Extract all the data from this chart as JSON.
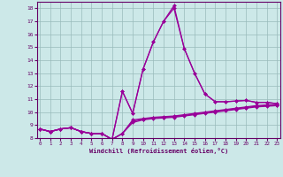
{
  "title": "",
  "xlabel": "Windchill (Refroidissement éolien,°C)",
  "bg_color": "#cce8e8",
  "line_color": "#990099",
  "grid_color": "#99bbbb",
  "x_values": [
    0,
    1,
    2,
    3,
    4,
    5,
    6,
    7,
    8,
    9,
    10,
    11,
    12,
    13,
    14,
    15,
    16,
    17,
    18,
    19,
    20,
    21,
    22,
    23
  ],
  "series_peak": [
    8.7,
    8.5,
    8.7,
    8.8,
    8.5,
    8.35,
    8.35,
    7.9,
    11.6,
    9.9,
    13.3,
    15.4,
    17.0,
    18.2,
    14.9,
    13.0,
    11.4,
    10.8,
    10.8,
    10.85,
    10.9,
    10.75,
    10.75,
    10.65
  ],
  "series_peak2": [
    8.7,
    8.5,
    8.7,
    8.8,
    8.5,
    8.35,
    8.35,
    7.9,
    11.6,
    9.9,
    13.3,
    15.4,
    17.0,
    18.0,
    14.9,
    13.0,
    11.4,
    10.8,
    10.8,
    10.85,
    10.9,
    10.75,
    10.75,
    10.65
  ],
  "series_flat1": [
    8.7,
    8.5,
    8.7,
    8.8,
    8.5,
    8.35,
    8.35,
    7.9,
    8.35,
    9.4,
    9.5,
    9.6,
    9.65,
    9.7,
    9.8,
    9.9,
    10.0,
    10.1,
    10.2,
    10.3,
    10.4,
    10.5,
    10.55,
    10.6
  ],
  "series_flat2": [
    8.7,
    8.5,
    8.7,
    8.8,
    8.5,
    8.35,
    8.35,
    7.9,
    8.35,
    9.3,
    9.45,
    9.55,
    9.6,
    9.65,
    9.75,
    9.85,
    9.95,
    10.05,
    10.15,
    10.25,
    10.35,
    10.45,
    10.5,
    10.55
  ],
  "series_flat3": [
    8.7,
    8.5,
    8.7,
    8.8,
    8.5,
    8.35,
    8.35,
    7.9,
    8.35,
    9.2,
    9.4,
    9.5,
    9.55,
    9.6,
    9.7,
    9.8,
    9.9,
    10.0,
    10.1,
    10.2,
    10.3,
    10.4,
    10.45,
    10.5
  ],
  "ylim": [
    8,
    18.5
  ],
  "xlim": [
    -0.3,
    23.3
  ],
  "yticks": [
    8,
    9,
    10,
    11,
    12,
    13,
    14,
    15,
    16,
    17,
    18
  ],
  "xticks": [
    0,
    1,
    2,
    3,
    4,
    5,
    6,
    7,
    8,
    9,
    10,
    11,
    12,
    13,
    14,
    15,
    16,
    17,
    18,
    19,
    20,
    21,
    22,
    23
  ]
}
